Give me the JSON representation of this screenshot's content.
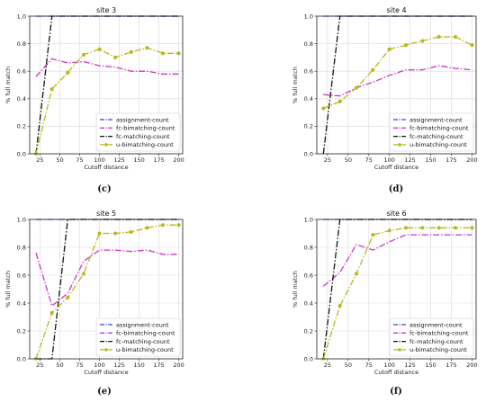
{
  "chart_data": [
    {
      "type": "line",
      "title": "site 3",
      "caption": "(c)",
      "xlabel": "Cutoff distance",
      "ylabel": "% full match",
      "xlim": [
        12,
        205
      ],
      "ylim": [
        0,
        1.0
      ],
      "xticks": [
        25,
        50,
        75,
        100,
        125,
        150,
        175,
        200
      ],
      "yticks": [
        0.0,
        0.2,
        0.4,
        0.6,
        0.8,
        1.0
      ],
      "grid": true,
      "legend_position": "lower-right",
      "series": [
        {
          "name": "assignment-count",
          "x": [
            20,
            40,
            60,
            80,
            100,
            120,
            140,
            160,
            180,
            200
          ],
          "y": [
            1.0,
            1.0,
            1.0,
            1.0,
            1.0,
            1.0,
            1.0,
            1.0,
            1.0,
            1.0
          ]
        },
        {
          "name": "fc-bimatching-count",
          "x": [
            20,
            40,
            60,
            80,
            100,
            120,
            140,
            160,
            180,
            200
          ],
          "y": [
            0.56,
            0.69,
            0.66,
            0.67,
            0.64,
            0.63,
            0.6,
            0.6,
            0.58,
            0.58
          ]
        },
        {
          "name": "fc-matching-count",
          "x": [
            20,
            40,
            60,
            80,
            100,
            120,
            140,
            160,
            180,
            200
          ],
          "y": [
            0.0,
            1.0,
            1.0,
            1.0,
            1.0,
            1.0,
            1.0,
            1.0,
            1.0,
            1.0
          ]
        },
        {
          "name": "u-bimatching-count",
          "x": [
            20,
            40,
            60,
            80,
            100,
            120,
            140,
            160,
            180,
            200
          ],
          "y": [
            0.0,
            0.47,
            0.59,
            0.72,
            0.76,
            0.7,
            0.74,
            0.77,
            0.73,
            0.73
          ]
        }
      ]
    },
    {
      "type": "line",
      "title": "site 4",
      "caption": "(d)",
      "xlabel": "Cutoff distance",
      "ylabel": "% full match",
      "xlim": [
        12,
        205
      ],
      "ylim": [
        0,
        1.0
      ],
      "xticks": [
        25,
        50,
        75,
        100,
        125,
        150,
        175,
        200
      ],
      "yticks": [
        0.0,
        0.2,
        0.4,
        0.6,
        0.8,
        1.0
      ],
      "grid": true,
      "legend_position": "lower-right",
      "series": [
        {
          "name": "assignment-count",
          "x": [
            20,
            40,
            60,
            80,
            100,
            120,
            140,
            160,
            180,
            200
          ],
          "y": [
            1.0,
            1.0,
            1.0,
            1.0,
            1.0,
            1.0,
            1.0,
            1.0,
            1.0,
            1.0
          ]
        },
        {
          "name": "fc-bimatching-count",
          "x": [
            20,
            40,
            60,
            80,
            100,
            120,
            140,
            160,
            180,
            200
          ],
          "y": [
            0.43,
            0.42,
            0.48,
            0.52,
            0.57,
            0.61,
            0.61,
            0.64,
            0.62,
            0.61
          ]
        },
        {
          "name": "fc-matching-count",
          "x": [
            20,
            40,
            60,
            80,
            100,
            120,
            140,
            160,
            180,
            200
          ],
          "y": [
            0.0,
            1.0,
            1.0,
            1.0,
            1.0,
            1.0,
            1.0,
            1.0,
            1.0,
            1.0
          ]
        },
        {
          "name": "u-bimatching-count",
          "x": [
            20,
            40,
            60,
            80,
            100,
            120,
            140,
            160,
            180,
            200
          ],
          "y": [
            0.33,
            0.38,
            0.48,
            0.61,
            0.76,
            0.79,
            0.82,
            0.85,
            0.85,
            0.79
          ]
        }
      ]
    },
    {
      "type": "line",
      "title": "site 5",
      "caption": "(e)",
      "xlabel": "Cutoff distance",
      "ylabel": "% full match",
      "xlim": [
        12,
        205
      ],
      "ylim": [
        0,
        1.0
      ],
      "xticks": [
        25,
        50,
        75,
        100,
        125,
        150,
        175,
        200
      ],
      "yticks": [
        0.0,
        0.2,
        0.4,
        0.6,
        0.8,
        1.0
      ],
      "grid": true,
      "legend_position": "lower-right",
      "series": [
        {
          "name": "assignment-count",
          "x": [
            20,
            40,
            60,
            80,
            100,
            120,
            140,
            160,
            180,
            200
          ],
          "y": [
            1.0,
            1.0,
            1.0,
            1.0,
            1.0,
            1.0,
            1.0,
            1.0,
            1.0,
            1.0
          ]
        },
        {
          "name": "fc-bimatching-count",
          "x": [
            20,
            40,
            60,
            80,
            100,
            120,
            140,
            160,
            180,
            200
          ],
          "y": [
            0.76,
            0.38,
            0.47,
            0.7,
            0.78,
            0.78,
            0.77,
            0.78,
            0.75,
            0.75
          ]
        },
        {
          "name": "fc-matching-count",
          "x": [
            20,
            40,
            60,
            80,
            100,
            120,
            140,
            160,
            180,
            200
          ],
          "y": [
            0.0,
            0.0,
            1.0,
            1.0,
            1.0,
            1.0,
            1.0,
            1.0,
            1.0,
            1.0
          ]
        },
        {
          "name": "u-bimatching-count",
          "x": [
            20,
            40,
            60,
            80,
            100,
            120,
            140,
            160,
            180,
            200
          ],
          "y": [
            0.0,
            0.33,
            0.44,
            0.61,
            0.9,
            0.9,
            0.91,
            0.94,
            0.96,
            0.96
          ]
        }
      ]
    },
    {
      "type": "line",
      "title": "site 6",
      "caption": "(f)",
      "xlabel": "Cutoff distance",
      "ylabel": "% full match",
      "xlim": [
        12,
        205
      ],
      "ylim": [
        0,
        1.0
      ],
      "xticks": [
        25,
        50,
        75,
        100,
        125,
        150,
        175,
        200
      ],
      "yticks": [
        0.0,
        0.2,
        0.4,
        0.6,
        0.8,
        1.0
      ],
      "grid": true,
      "legend_position": "lower-right",
      "series": [
        {
          "name": "assignment-count",
          "x": [
            20,
            40,
            60,
            80,
            100,
            120,
            140,
            160,
            180,
            200
          ],
          "y": [
            1.0,
            1.0,
            1.0,
            1.0,
            1.0,
            1.0,
            1.0,
            1.0,
            1.0,
            1.0
          ]
        },
        {
          "name": "fc-bimatching-count",
          "x": [
            20,
            40,
            60,
            80,
            100,
            120,
            140,
            160,
            180,
            200
          ],
          "y": [
            0.52,
            0.62,
            0.82,
            0.78,
            0.84,
            0.89,
            0.89,
            0.89,
            0.89,
            0.89
          ]
        },
        {
          "name": "fc-matching-count",
          "x": [
            20,
            40,
            60,
            80,
            100,
            120,
            140,
            160,
            180,
            200
          ],
          "y": [
            0.0,
            1.0,
            1.0,
            1.0,
            1.0,
            1.0,
            1.0,
            1.0,
            1.0,
            1.0
          ]
        },
        {
          "name": "u-bimatching-count",
          "x": [
            20,
            40,
            60,
            80,
            100,
            120,
            140,
            160,
            180,
            200
          ],
          "y": [
            0.0,
            0.38,
            0.61,
            0.89,
            0.92,
            0.94,
            0.94,
            0.94,
            0.94,
            0.94
          ]
        }
      ]
    }
  ],
  "series_styles": [
    {
      "color": "#3a3adb",
      "dash": "7 2 1.5 2",
      "marker": "none"
    },
    {
      "color": "#cc33cc",
      "dash": "7 2 1.5 2",
      "marker": "none"
    },
    {
      "color": "#111111",
      "dash": "7 2 1.5 2",
      "marker": "none"
    },
    {
      "color": "#b8b81a",
      "dash": "7 2 1.5 2",
      "marker": "circle"
    }
  ]
}
